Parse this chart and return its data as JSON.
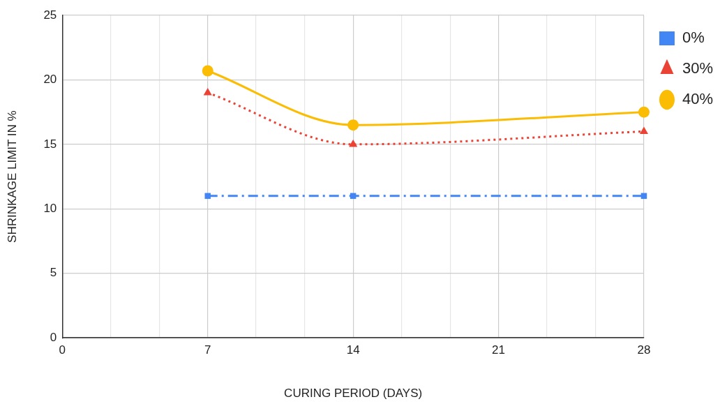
{
  "chart_data": {
    "type": "line",
    "xlabel": "CURING PERIOD (DAYS)",
    "ylabel": "SHRINKAGE LIMIT IN %",
    "x": [
      7,
      14,
      28
    ],
    "series": [
      {
        "name": "0%",
        "color": "#4285f4",
        "values": [
          11,
          11,
          11
        ],
        "marker": "square",
        "line_style": "dashed"
      },
      {
        "name": "30%",
        "color": "#ea4335",
        "values": [
          19,
          15,
          16
        ],
        "marker": "triangle",
        "line_style": "dotted"
      },
      {
        "name": "40%",
        "color": "#fbbc04",
        "values": [
          20.7,
          16.5,
          17.5
        ],
        "marker": "circle",
        "line_style": "solid"
      }
    ],
    "xlim": [
      0,
      28
    ],
    "xticks": [
      0,
      {
        "value": 2.33,
        "label": null
      },
      {
        "value": 4.67,
        "label": null
      },
      7,
      {
        "value": 9.33,
        "label": null
      },
      {
        "value": 11.67,
        "label": null
      },
      14,
      {
        "value": 16.33,
        "label": null
      },
      {
        "value": 18.67,
        "label": null
      },
      21,
      {
        "value": 23.33,
        "label": null
      },
      {
        "value": 25.67,
        "label": null
      },
      28
    ],
    "ylim": [
      0,
      25
    ],
    "yticks": [
      0,
      5,
      10,
      15,
      20,
      25
    ],
    "grid": true,
    "legend": "top right"
  }
}
